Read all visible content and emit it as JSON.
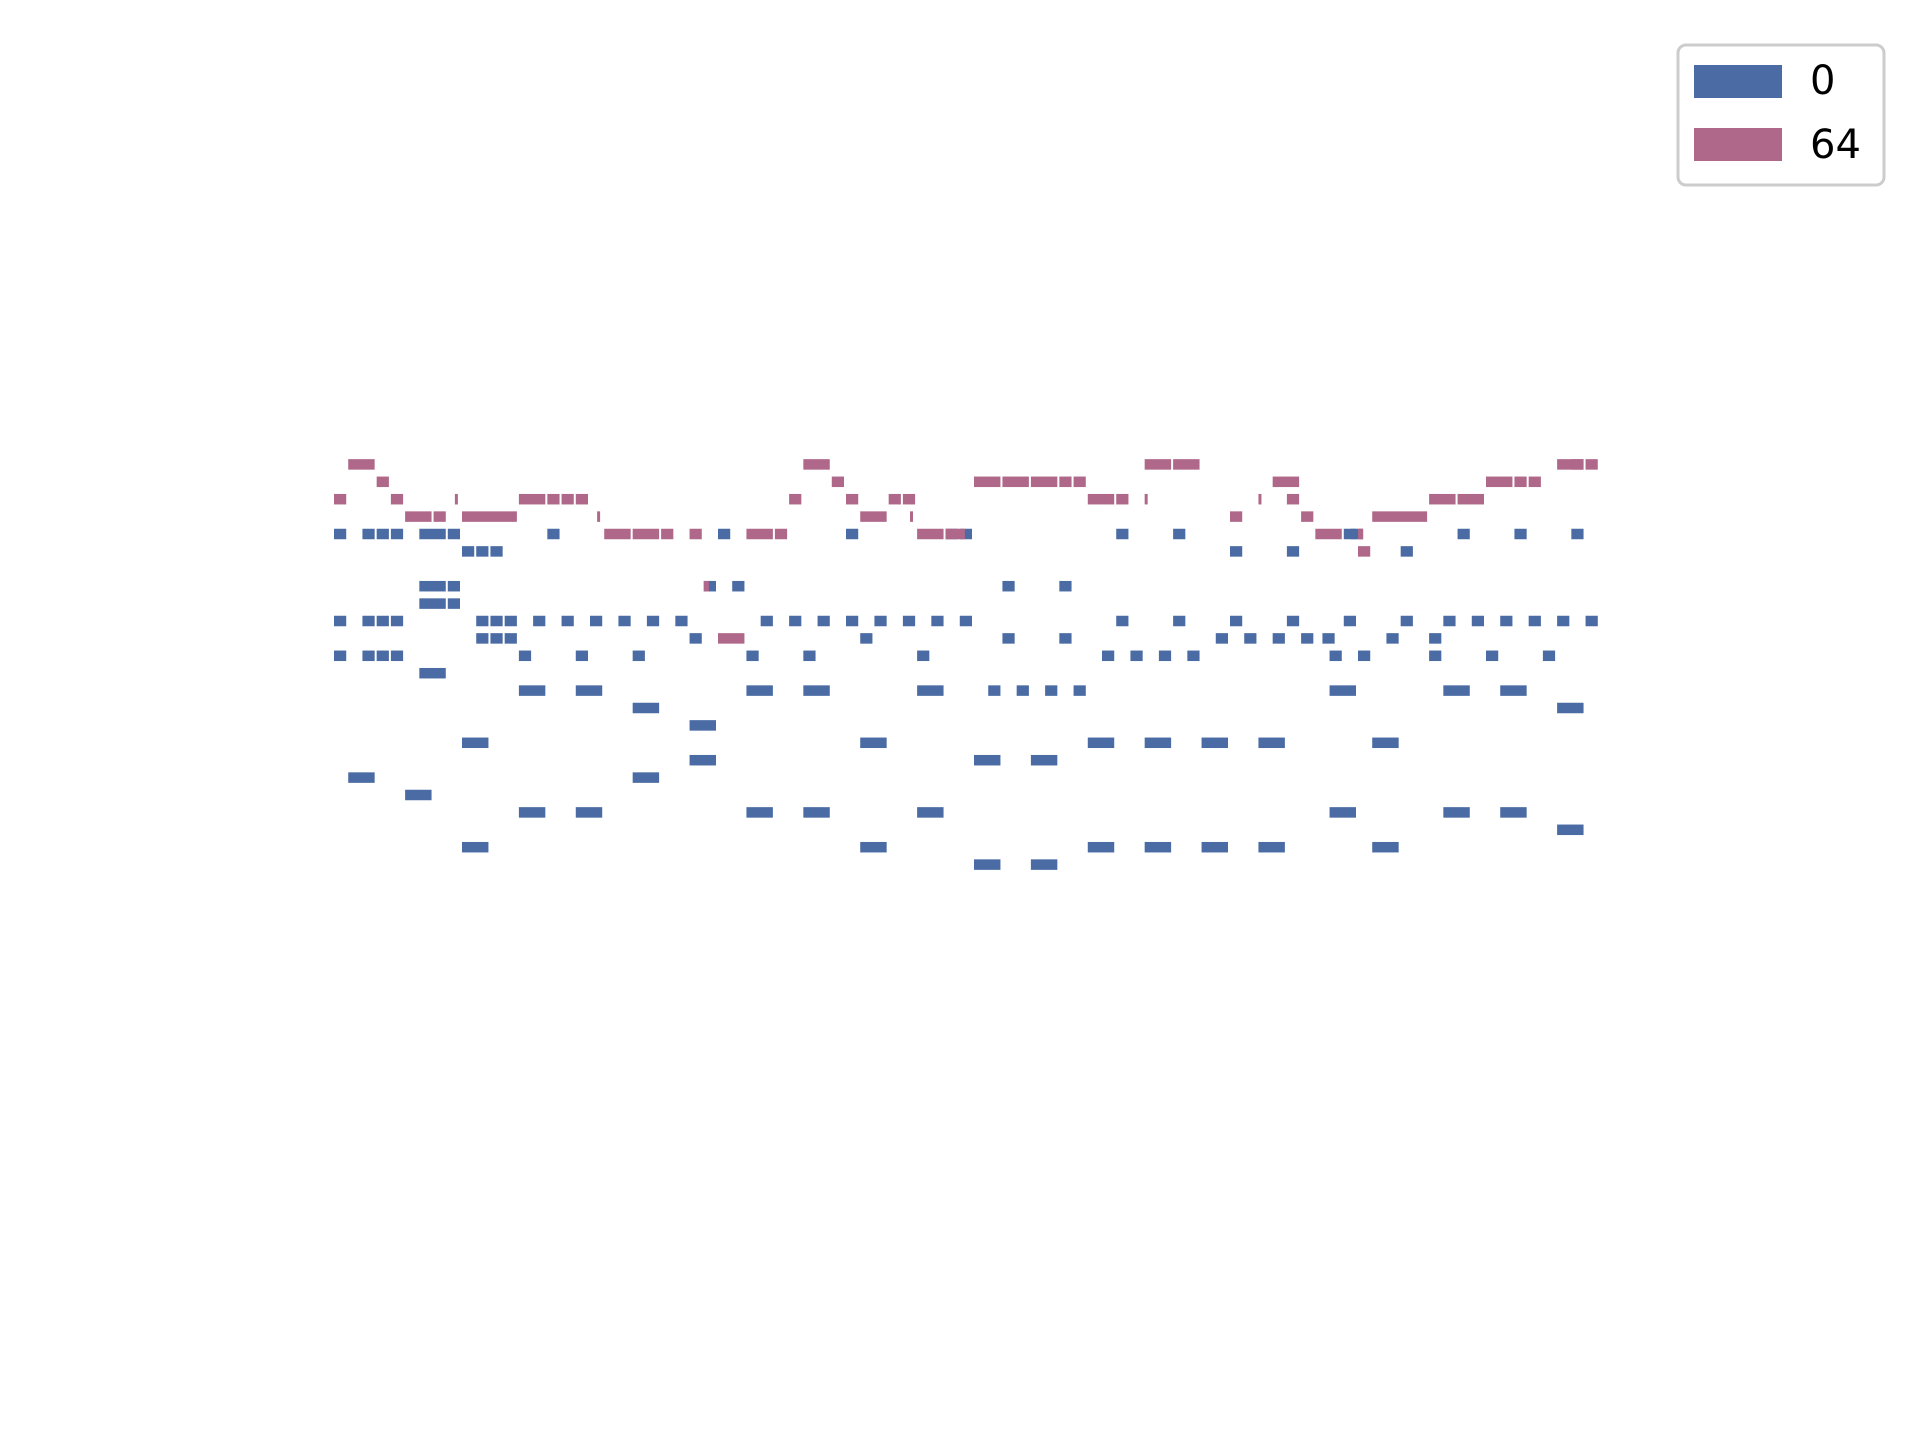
{
  "chart_data": {
    "type": "bar",
    "subtype": "piano-roll",
    "axes_visible": false,
    "grid": false,
    "legend": {
      "placement": "top-right"
    },
    "xlim": [
      0,
      90
    ],
    "ylim": [
      0,
      30
    ],
    "series": [
      {
        "name": "0",
        "color": "#4a6ba3",
        "notes": [
          [
            0,
            20,
            1
          ],
          [
            2,
            20,
            1
          ],
          [
            3,
            20,
            1
          ],
          [
            4,
            20,
            1
          ],
          [
            6,
            20,
            2
          ],
          [
            8,
            20,
            1
          ],
          [
            9,
            19.5,
            1
          ],
          [
            10,
            19.5,
            1
          ],
          [
            11,
            19.5,
            1
          ],
          [
            15,
            20,
            1
          ],
          [
            27,
            20,
            1
          ],
          [
            36,
            20,
            1
          ],
          [
            43,
            20,
            1
          ],
          [
            44,
            20,
            1
          ],
          [
            55,
            20,
            1
          ],
          [
            59,
            20,
            1
          ],
          [
            63,
            19.5,
            1
          ],
          [
            67,
            19.5,
            1
          ],
          [
            71,
            20,
            1
          ],
          [
            71.5,
            20,
            1
          ],
          [
            75,
            19.5,
            1
          ],
          [
            79,
            20,
            1
          ],
          [
            83,
            20,
            1
          ],
          [
            87,
            20,
            1
          ],
          [
            6,
            18.5,
            2
          ],
          [
            8,
            18.5,
            1
          ],
          [
            26,
            18.5,
            1
          ],
          [
            28,
            18.5,
            1
          ],
          [
            47,
            18.5,
            1
          ],
          [
            51,
            18.5,
            1
          ],
          [
            0,
            17.5,
            1
          ],
          [
            2,
            17.5,
            1
          ],
          [
            3,
            17.5,
            1
          ],
          [
            4,
            17.5,
            1
          ],
          [
            10,
            17.5,
            1
          ],
          [
            11,
            17.5,
            1
          ],
          [
            12,
            17.5,
            1
          ],
          [
            14,
            17.5,
            1
          ],
          [
            16,
            17.5,
            1
          ],
          [
            18,
            17.5,
            1
          ],
          [
            20,
            17.5,
            1
          ],
          [
            22,
            17.5,
            1
          ],
          [
            24,
            17.5,
            1
          ],
          [
            30,
            17.5,
            1
          ],
          [
            32,
            17.5,
            1
          ],
          [
            34,
            17.5,
            1
          ],
          [
            36,
            17.5,
            1
          ],
          [
            38,
            17.5,
            1
          ],
          [
            40,
            17.5,
            1
          ],
          [
            42,
            17.5,
            1
          ],
          [
            44,
            17.5,
            1
          ],
          [
            55,
            17.5,
            1
          ],
          [
            59,
            17.5,
            1
          ],
          [
            63,
            17.5,
            1
          ],
          [
            67,
            17.5,
            1
          ],
          [
            71,
            17.5,
            1
          ],
          [
            75,
            17.5,
            1
          ],
          [
            78,
            17.5,
            1
          ],
          [
            80,
            17.5,
            1
          ],
          [
            82,
            17.5,
            1
          ],
          [
            84,
            17.5,
            1
          ],
          [
            86,
            17.5,
            1
          ],
          [
            88,
            17.5,
            1
          ],
          [
            6,
            18,
            2
          ],
          [
            8,
            18,
            1
          ],
          [
            10,
            17,
            1
          ],
          [
            11,
            17,
            1
          ],
          [
            12,
            17,
            1
          ],
          [
            25,
            17,
            1
          ],
          [
            37,
            17,
            1
          ],
          [
            47,
            17,
            1
          ],
          [
            51,
            17,
            1
          ],
          [
            62,
            17,
            1
          ],
          [
            64,
            17,
            1
          ],
          [
            66,
            17,
            1
          ],
          [
            68,
            17,
            1
          ],
          [
            69.5,
            17,
            1
          ],
          [
            74,
            17,
            1
          ],
          [
            77,
            17,
            1
          ],
          [
            0,
            16.5,
            1
          ],
          [
            2,
            16.5,
            1
          ],
          [
            3,
            16.5,
            1
          ],
          [
            4,
            16.5,
            1
          ],
          [
            13,
            16.5,
            1
          ],
          [
            17,
            16.5,
            1
          ],
          [
            21,
            16.5,
            1
          ],
          [
            29,
            16.5,
            1
          ],
          [
            33,
            16.5,
            1
          ],
          [
            41,
            16.5,
            1
          ],
          [
            54,
            16.5,
            1
          ],
          [
            56,
            16.5,
            1
          ],
          [
            58,
            16.5,
            1
          ],
          [
            60,
            16.5,
            1
          ],
          [
            70,
            16.5,
            1
          ],
          [
            72,
            16.5,
            1
          ],
          [
            77,
            16.5,
            1
          ],
          [
            81,
            16.5,
            1
          ],
          [
            85,
            16.5,
            1
          ],
          [
            6,
            16,
            2
          ],
          [
            13,
            15.5,
            2
          ],
          [
            17,
            15.5,
            2
          ],
          [
            29,
            15.5,
            2
          ],
          [
            33,
            15.5,
            2
          ],
          [
            41,
            15.5,
            2
          ],
          [
            46,
            15.5,
            1
          ],
          [
            48,
            15.5,
            1
          ],
          [
            50,
            15.5,
            1
          ],
          [
            52,
            15.5,
            1
          ],
          [
            70,
            15.5,
            2
          ],
          [
            78,
            15.5,
            2
          ],
          [
            82,
            15.5,
            2
          ],
          [
            21,
            15,
            2
          ],
          [
            86,
            15,
            2
          ],
          [
            25,
            14.5,
            2
          ],
          [
            9,
            14,
            2
          ],
          [
            37,
            14,
            2
          ],
          [
            53,
            14,
            2
          ],
          [
            57,
            14,
            2
          ],
          [
            61,
            14,
            2
          ],
          [
            65,
            14,
            2
          ],
          [
            73,
            14,
            2
          ],
          [
            25,
            13.5,
            2
          ],
          [
            45,
            13.5,
            2
          ],
          [
            49,
            13.5,
            2
          ],
          [
            1,
            13,
            2
          ],
          [
            21,
            13,
            2
          ],
          [
            5,
            12.5,
            2
          ],
          [
            13,
            12,
            2
          ],
          [
            17,
            12,
            2
          ],
          [
            29,
            12,
            2
          ],
          [
            33,
            12,
            2
          ],
          [
            41,
            12,
            2
          ],
          [
            70,
            12,
            2
          ],
          [
            78,
            12,
            2
          ],
          [
            82,
            12,
            2
          ],
          [
            86,
            11.5,
            2
          ],
          [
            9,
            11,
            2
          ],
          [
            37,
            11,
            2
          ],
          [
            53,
            11,
            2
          ],
          [
            57,
            11,
            2
          ],
          [
            61,
            11,
            2
          ],
          [
            65,
            11,
            2
          ],
          [
            73,
            11,
            2
          ],
          [
            45,
            10.5,
            2
          ],
          [
            49,
            10.5,
            2
          ]
        ]
      },
      {
        "name": "64",
        "color": "#b0688a",
        "notes": [
          [
            1,
            22,
            2
          ],
          [
            33,
            22,
            2
          ],
          [
            57,
            22,
            2
          ],
          [
            59,
            22,
            2
          ],
          [
            86,
            22,
            2
          ],
          [
            87,
            22,
            1
          ],
          [
            88,
            22,
            1
          ],
          [
            3,
            21.5,
            1
          ],
          [
            35,
            21.5,
            1
          ],
          [
            45,
            21.5,
            2
          ],
          [
            47,
            21.5,
            2
          ],
          [
            49,
            21.5,
            2
          ],
          [
            51,
            21.5,
            1
          ],
          [
            52,
            21.5,
            1
          ],
          [
            66,
            21.5,
            2
          ],
          [
            81,
            21.5,
            2
          ],
          [
            83,
            21.5,
            1
          ],
          [
            84,
            21.5,
            1
          ],
          [
            0,
            21,
            1
          ],
          [
            4,
            21,
            1
          ],
          [
            8.5,
            21,
            0.3
          ],
          [
            13,
            21,
            2
          ],
          [
            15,
            21,
            1
          ],
          [
            16,
            21,
            1
          ],
          [
            17,
            21,
            1
          ],
          [
            32,
            21,
            1
          ],
          [
            36,
            21,
            1
          ],
          [
            39,
            21,
            1
          ],
          [
            40,
            21,
            1
          ],
          [
            53,
            21,
            2
          ],
          [
            55,
            21,
            1
          ],
          [
            57,
            21,
            0.3
          ],
          [
            65,
            21,
            0.3
          ],
          [
            67,
            21,
            1
          ],
          [
            77,
            21,
            2
          ],
          [
            79,
            21,
            2
          ],
          [
            5,
            20.5,
            2
          ],
          [
            7,
            20.5,
            1
          ],
          [
            9,
            20.5,
            4
          ],
          [
            18.5,
            20.5,
            0.3
          ],
          [
            37,
            20.5,
            2
          ],
          [
            40.5,
            20.5,
            0.3
          ],
          [
            63,
            20.5,
            1
          ],
          [
            68,
            20.5,
            1
          ],
          [
            73,
            20.5,
            4
          ],
          [
            19,
            20,
            2
          ],
          [
            21,
            20,
            2
          ],
          [
            23,
            20,
            1
          ],
          [
            25,
            20,
            1
          ],
          [
            29,
            20,
            2
          ],
          [
            31,
            20,
            1
          ],
          [
            41,
            20,
            2
          ],
          [
            43,
            20,
            1.5
          ],
          [
            69,
            20,
            2
          ],
          [
            72,
            20,
            0.5
          ],
          [
            72,
            19.5,
            1
          ],
          [
            26,
            18.5,
            0.5
          ],
          [
            27,
            17,
            2
          ]
        ]
      }
    ]
  }
}
